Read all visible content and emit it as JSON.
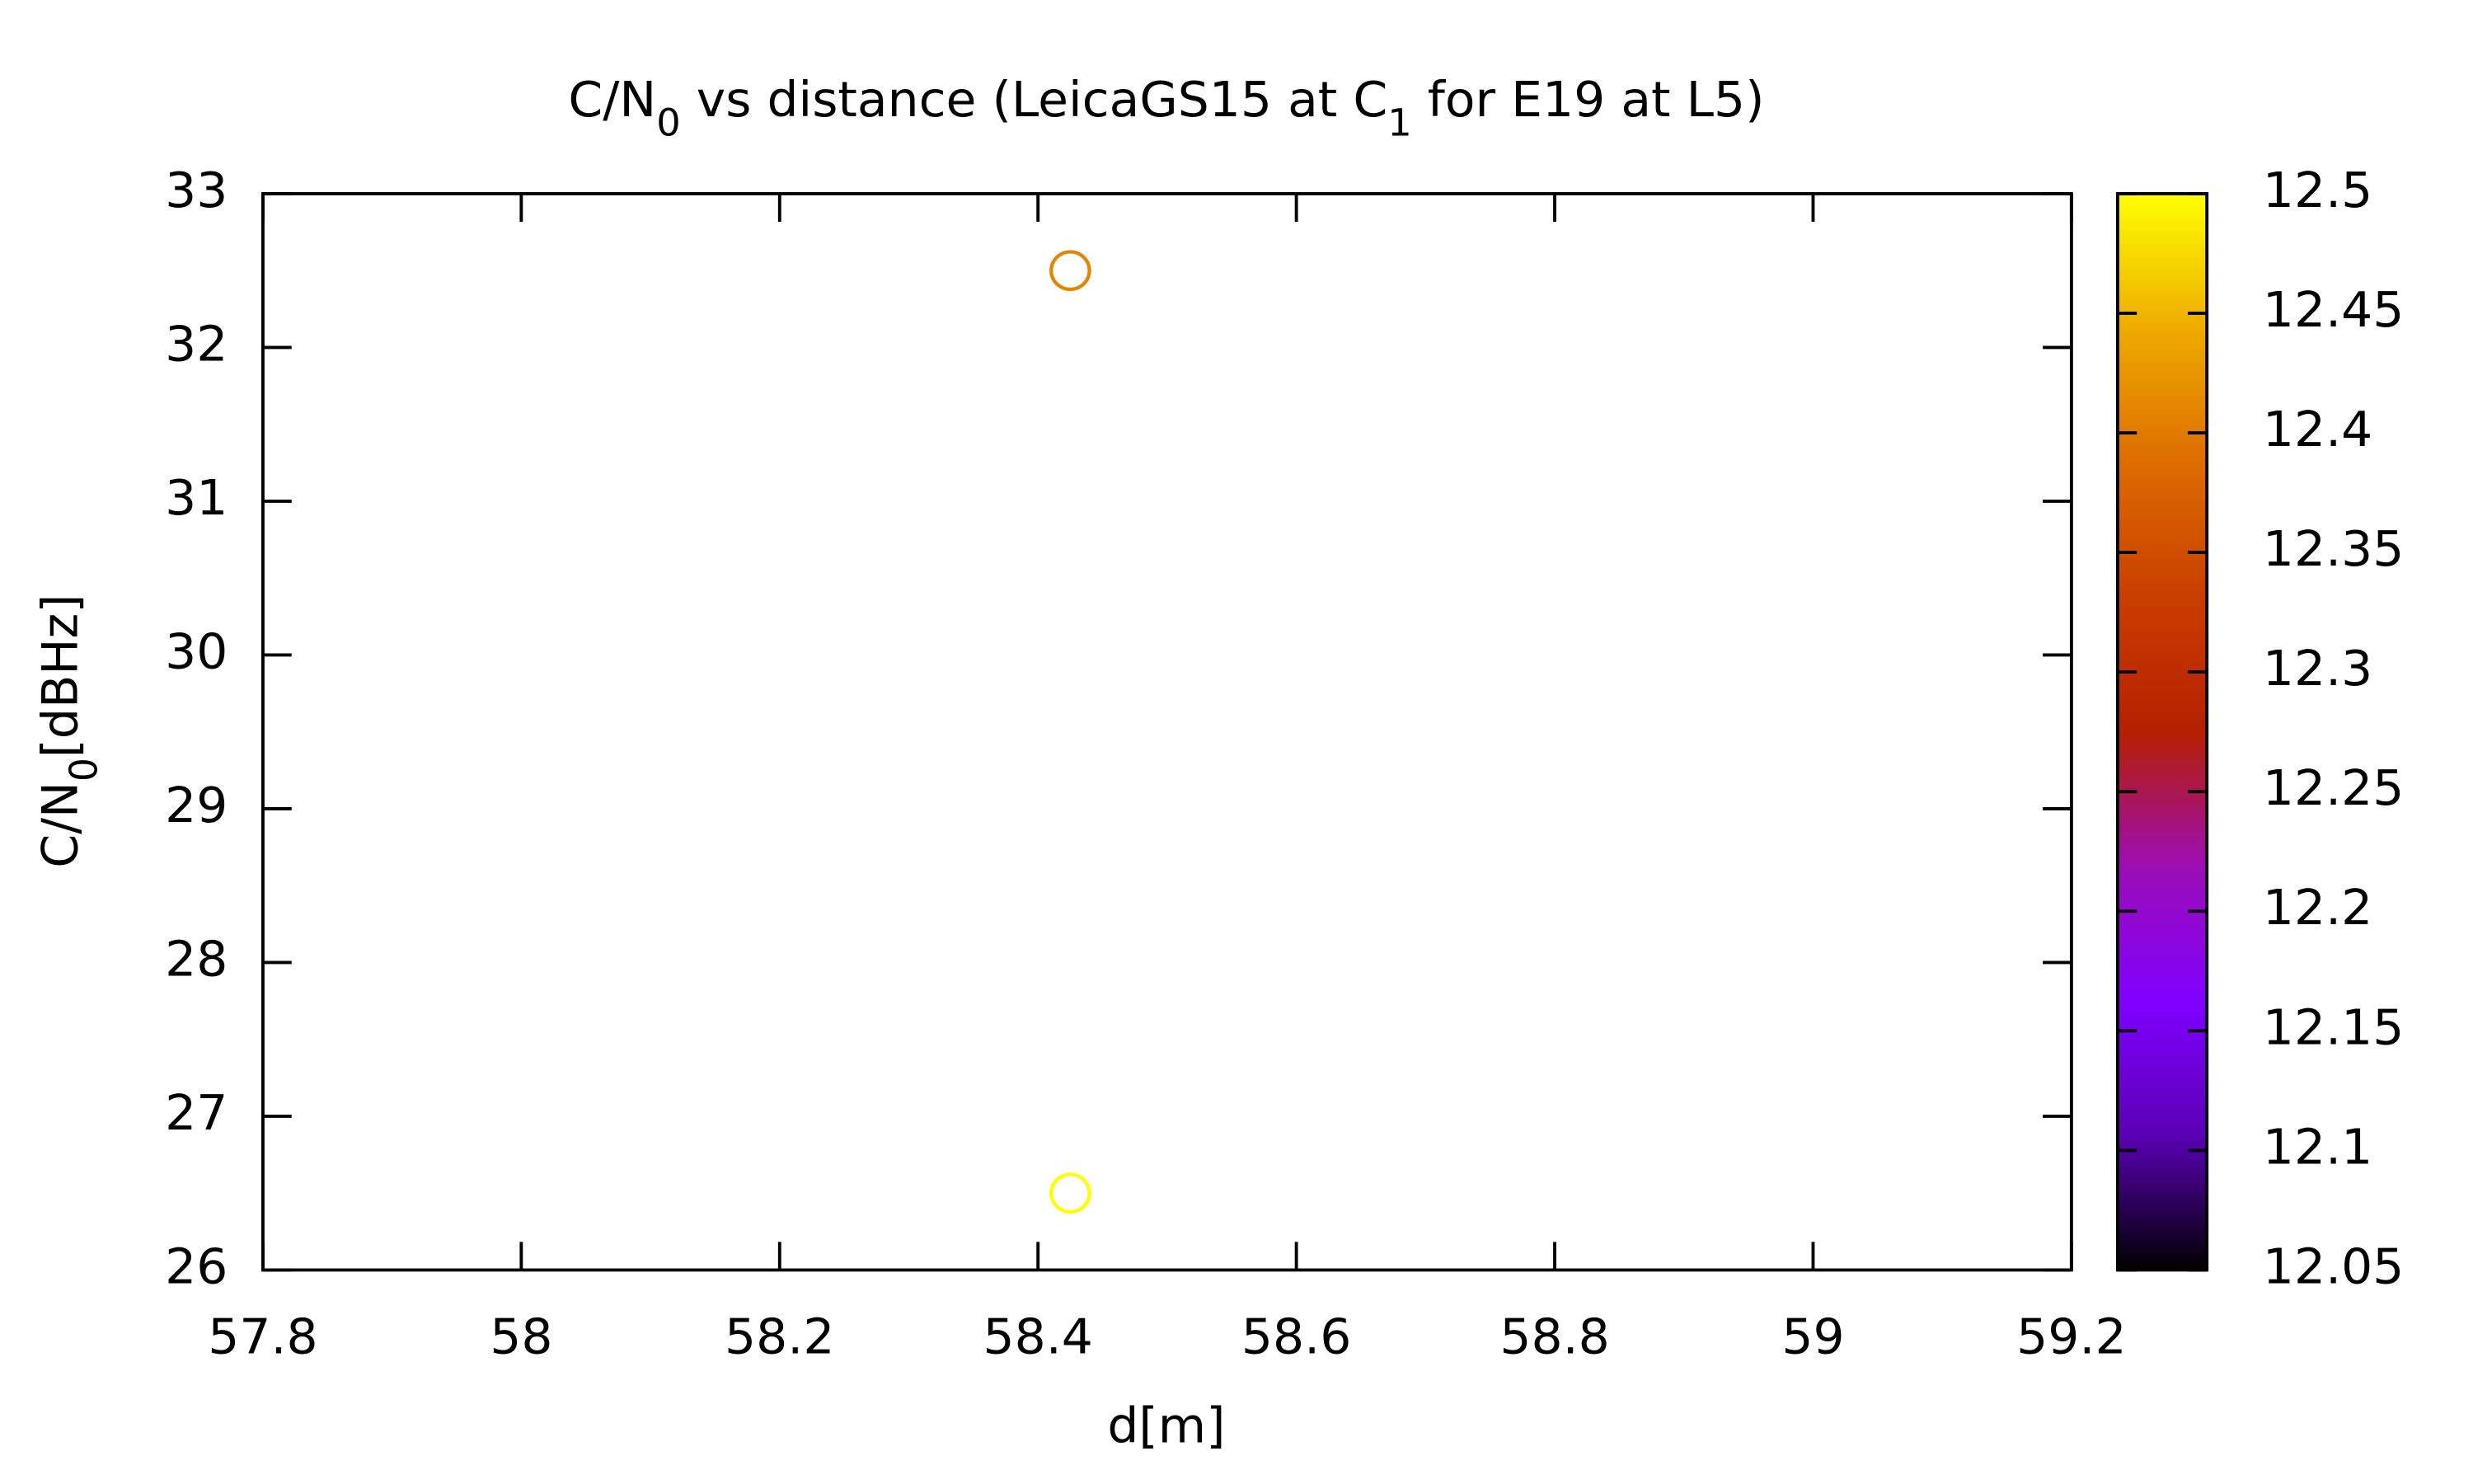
{
  "chart_data": {
    "type": "scatter",
    "title": [
      "C/N",
      "0",
      " vs distance (LeicaGS15 at C",
      "1",
      " for E19 at L5)"
    ],
    "xlabel": "d[m]",
    "ylabel": [
      "C/N",
      "0",
      "[dBHz]"
    ],
    "x": [
      58.425,
      58.425
    ],
    "y": [
      32.5,
      26.5
    ],
    "c": [
      12.41,
      12.5
    ],
    "xlim": [
      57.8,
      59.2
    ],
    "xticks": [
      57.8,
      58,
      58.2,
      58.4,
      58.6,
      58.8,
      59,
      59.2
    ],
    "ylim": [
      26,
      33
    ],
    "yticks": [
      26,
      27,
      28,
      29,
      30,
      31,
      32,
      33
    ],
    "clim": [
      12.05,
      12.5
    ],
    "cticks": [
      12.05,
      12.1,
      12.15,
      12.2,
      12.25,
      12.3,
      12.35,
      12.4,
      12.45,
      12.5
    ],
    "palette": [
      "#000000",
      "#5a00b4",
      "#8000ff",
      "#9c0db4",
      "#b52000",
      "#c93e00",
      "#dd6c00",
      "#eeab00",
      "#ffff00"
    ],
    "marker": "open-circle"
  }
}
